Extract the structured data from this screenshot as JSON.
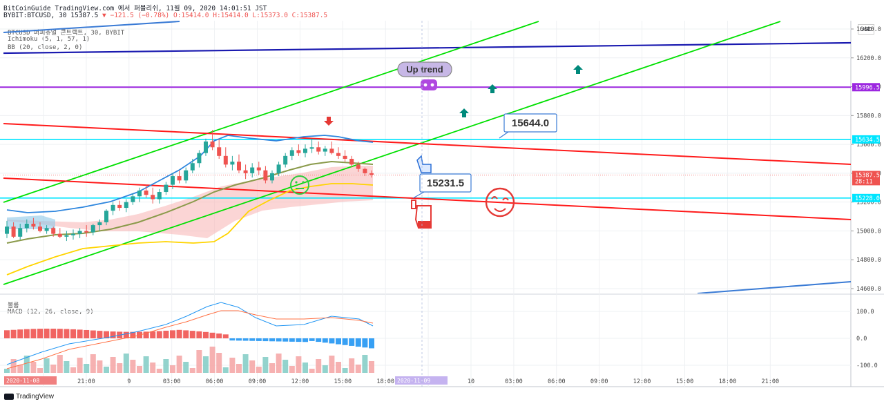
{
  "header": {
    "line1": "BitCoinGuide TradingView.com 에서 퍼블리쉬, 11월 09, 2020 14:01:51 JST",
    "symbol": "BYBIT:BTCUSD, 30",
    "last": "15387.5",
    "change": "▼ −121.5 (−0.78%)",
    "o": "O:15414.0",
    "h": "H:15414.0",
    "l": "L:15373.0",
    "c": "C:15387.5"
  },
  "legend": {
    "main": "BTCUSD 퍼피츄얼 콘트랙트, 30, BYBIT",
    "ichimoku": "Ichimoku (5, 1, 57, 1)",
    "bb": "BB (20, close, 2, 0)",
    "volume": "볼륨",
    "macd": "MACD (12, 26, close, 9)"
  },
  "currency_button": "USD",
  "footer": "TradingView",
  "colors": {
    "up": "#26a69a",
    "down": "#ef5350",
    "channel": "#00e000",
    "resistance": "#ff1a1a",
    "cyan": "#00e5ff",
    "purple": "#9c27e0",
    "navy": "#1a1ab0"
  },
  "chart_data": {
    "type": "candlestick",
    "price_axis": {
      "min": 14560,
      "max": 16450,
      "ticks": [
        14600.0,
        14800.0,
        15000.0,
        15200.0,
        15400.0,
        15600.0,
        15800.0,
        16000.0,
        16200.0,
        16400.0
      ]
    },
    "time_axis": [
      "18:00",
      "21:00",
      "9",
      "03:00",
      "06:00",
      "09:00",
      "12:00",
      "15:00",
      "18:00",
      "21:00",
      "10",
      "03:00",
      "06:00",
      "09:00",
      "12:00",
      "15:00",
      "18:00",
      "21:00"
    ],
    "time_badges": [
      "2020-11-08",
      "2020-11-09"
    ],
    "price_badges": [
      {
        "label": "15996.5",
        "value": 15996.5,
        "color": "#9c27e0"
      },
      {
        "label": "15634.5",
        "value": 15634.5,
        "color": "#00e5ff"
      },
      {
        "label": "15387.5",
        "value": 15387.5,
        "color": "#ef5350"
      },
      {
        "label": "28:11",
        "value": 15345,
        "color": "#ef5350"
      },
      {
        "label": "15228.0",
        "value": 15228.0,
        "color": "#00e5ff"
      }
    ],
    "callouts": [
      {
        "text": "Up trend"
      },
      {
        "text": "15644.0"
      },
      {
        "text": "15231.5"
      }
    ],
    "candles": [
      [
        14980,
        15070,
        14950,
        15030
      ],
      [
        15030,
        15060,
        14950,
        14960
      ],
      [
        14960,
        15050,
        14940,
        15020
      ],
      [
        15020,
        15080,
        14990,
        15050
      ],
      [
        15050,
        15090,
        15010,
        15030
      ],
      [
        15030,
        15060,
        14990,
        15000
      ],
      [
        15000,
        15040,
        14980,
        15020
      ],
      [
        15020,
        15030,
        14960,
        14980
      ],
      [
        14980,
        15020,
        14950,
        14960
      ],
      [
        14960,
        15000,
        14930,
        14970
      ],
      [
        14970,
        15010,
        14940,
        14980
      ],
      [
        14980,
        15020,
        14950,
        15000
      ],
      [
        15000,
        15040,
        14960,
        14990
      ],
      [
        14990,
        15050,
        14970,
        15040
      ],
      [
        15040,
        15080,
        15000,
        15060
      ],
      [
        15060,
        15150,
        15040,
        15140
      ],
      [
        15140,
        15200,
        15110,
        15180
      ],
      [
        15180,
        15210,
        15140,
        15160
      ],
      [
        15160,
        15220,
        15130,
        15200
      ],
      [
        15200,
        15260,
        15180,
        15240
      ],
      [
        15240,
        15300,
        15200,
        15280
      ],
      [
        15280,
        15320,
        15230,
        15250
      ],
      [
        15250,
        15300,
        15190,
        15220
      ],
      [
        15220,
        15290,
        15190,
        15270
      ],
      [
        15270,
        15340,
        15250,
        15320
      ],
      [
        15320,
        15400,
        15290,
        15380
      ],
      [
        15380,
        15420,
        15330,
        15350
      ],
      [
        15350,
        15440,
        15330,
        15420
      ],
      [
        15420,
        15500,
        15400,
        15470
      ],
      [
        15470,
        15560,
        15440,
        15540
      ],
      [
        15540,
        15640,
        15520,
        15620
      ],
      [
        15620,
        15700,
        15560,
        15580
      ],
      [
        15580,
        15640,
        15500,
        15520
      ],
      [
        15520,
        15580,
        15440,
        15460
      ],
      [
        15460,
        15520,
        15420,
        15480
      ],
      [
        15480,
        15530,
        15400,
        15420
      ],
      [
        15420,
        15460,
        15360,
        15400
      ],
      [
        15400,
        15470,
        15370,
        15440
      ],
      [
        15440,
        15480,
        15390,
        15420
      ],
      [
        15420,
        15450,
        15330,
        15350
      ],
      [
        15350,
        15420,
        15330,
        15400
      ],
      [
        15400,
        15480,
        15380,
        15460
      ],
      [
        15460,
        15540,
        15440,
        15520
      ],
      [
        15520,
        15580,
        15490,
        15560
      ],
      [
        15560,
        15600,
        15520,
        15540
      ],
      [
        15540,
        15600,
        15510,
        15570
      ],
      [
        15570,
        15640,
        15540,
        15580
      ],
      [
        15580,
        15620,
        15530,
        15550
      ],
      [
        15550,
        15590,
        15520,
        15570
      ],
      [
        15570,
        15620,
        15530,
        15540
      ],
      [
        15540,
        15580,
        15500,
        15520
      ],
      [
        15520,
        15560,
        15480,
        15500
      ],
      [
        15500,
        15520,
        15440,
        15460
      ],
      [
        15460,
        15480,
        15410,
        15430
      ],
      [
        15430,
        15440,
        15380,
        15400
      ],
      [
        15400,
        15420,
        15370,
        15390
      ]
    ],
    "macd_axis": {
      "ticks": [
        100.0,
        0.0,
        -100.0
      ]
    }
  }
}
